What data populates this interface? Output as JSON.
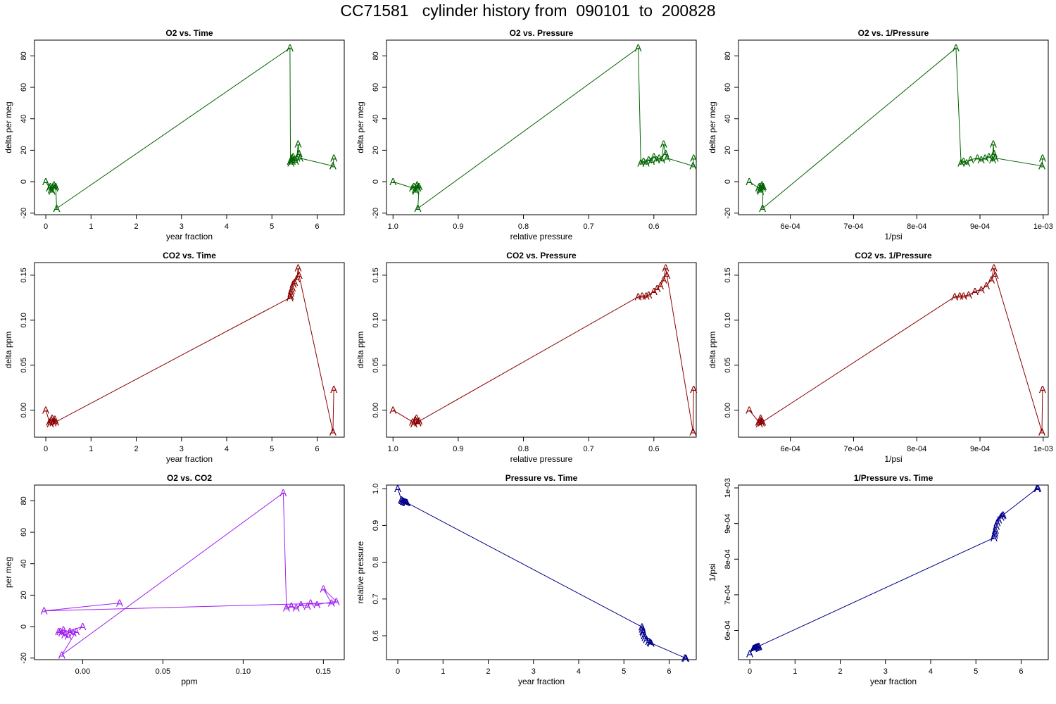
{
  "page": {
    "title": "CC71581   cylinder history from  090101  to  200828"
  },
  "chart_data": [
    {
      "type": "line",
      "title": "O2 vs. Time",
      "xlabel": "year fraction",
      "ylabel": "delta per meg",
      "color": "#006400",
      "xlim": [
        -0.25,
        6.6
      ],
      "ylim": [
        -21,
        90
      ],
      "xticks": [
        0,
        1,
        2,
        3,
        4,
        5,
        6
      ],
      "xticklabels": [
        "0",
        "1",
        "2",
        "3",
        "4",
        "5",
        "6"
      ],
      "yticks": [
        -20,
        0,
        20,
        40,
        60,
        80
      ],
      "yticklabels": [
        "-20",
        "0",
        "20",
        "40",
        "60",
        "80"
      ],
      "marker": "A",
      "x": [
        0.0,
        0.08,
        0.1,
        0.12,
        0.14,
        0.16,
        0.18,
        0.2,
        0.22,
        0.24,
        5.4,
        5.41,
        5.42,
        5.43,
        5.44,
        5.45,
        5.47,
        5.5,
        5.52,
        5.55,
        5.58,
        5.6,
        5.62,
        6.35,
        6.37
      ],
      "y": [
        0.0,
        -4,
        -3,
        -5,
        -6,
        -3,
        -2,
        -4,
        -3,
        -17,
        85,
        13,
        12,
        14,
        15,
        13,
        16,
        14,
        13,
        15,
        24,
        18,
        15,
        10,
        15
      ]
    },
    {
      "type": "line",
      "title": "O2 vs. Pressure",
      "xlabel": "relative pressure",
      "ylabel": "delta per meg",
      "color": "#006400",
      "xlim": [
        1.01,
        0.535
      ],
      "ylim": [
        -21,
        90
      ],
      "xticks": [
        1.0,
        0.9,
        0.8,
        0.7,
        0.6
      ],
      "xticklabels": [
        "1.0",
        "0.9",
        "0.8",
        "0.7",
        "0.6"
      ],
      "yticks": [
        -20,
        0,
        20,
        40,
        60,
        80
      ],
      "yticklabels": [
        "-20",
        "0",
        "20",
        "40",
        "60",
        "80"
      ],
      "marker": "A",
      "x": [
        1.0,
        0.97,
        0.968,
        0.966,
        0.965,
        0.964,
        0.963,
        0.962,
        0.96,
        0.962,
        0.624,
        0.62,
        0.616,
        0.612,
        0.608,
        0.604,
        0.6,
        0.596,
        0.592,
        0.588,
        0.585,
        0.582,
        0.58,
        0.54,
        0.539
      ],
      "y": [
        0.0,
        -4,
        -3,
        -5,
        -6,
        -3,
        -2,
        -4,
        -3,
        -17,
        85,
        12,
        13,
        12,
        14,
        13,
        16,
        14,
        15,
        14,
        24,
        18,
        15,
        10,
        15
      ]
    },
    {
      "type": "line",
      "title": "O2 vs. 1/Pressure",
      "xlabel": "1/psi",
      "ylabel": "delta per meg",
      "color": "#006400",
      "xlim": [
        0.000518,
        0.001008
      ],
      "ylim": [
        -21,
        90
      ],
      "xticks": [
        0.0006,
        0.0007,
        0.0008,
        0.0009,
        0.001
      ],
      "xticklabels": [
        "6e-04",
        "7e-04",
        "8e-04",
        "9e-04",
        "1e-03"
      ],
      "yticks": [
        -20,
        0,
        20,
        40,
        60,
        80
      ],
      "yticklabels": [
        "-20",
        "0",
        "20",
        "40",
        "60",
        "80"
      ],
      "marker": "A",
      "x": [
        0.000535,
        0.00055,
        0.000551,
        0.000552,
        0.000553,
        0.000554,
        0.000555,
        0.000556,
        0.000557,
        0.000556,
        0.000862,
        0.00087,
        0.000874,
        0.000879,
        0.000885,
        0.000896,
        0.000902,
        0.000908,
        0.000914,
        0.00092,
        0.000921,
        0.000922,
        0.000924,
        0.000998,
        0.000999
      ],
      "y": [
        0.0,
        -4,
        -3,
        -5,
        -6,
        -3,
        -2,
        -4,
        -3,
        -17,
        85,
        12,
        13,
        12,
        14,
        15,
        14,
        15,
        16,
        14,
        24,
        18,
        15,
        10,
        15
      ]
    },
    {
      "type": "line",
      "title": "CO2 vs. Time",
      "xlabel": "year fraction",
      "ylabel": "delta ppm",
      "color": "#8b0000",
      "xlim": [
        -0.25,
        6.6
      ],
      "ylim": [
        -0.03,
        0.164
      ],
      "xticks": [
        0,
        1,
        2,
        3,
        4,
        5,
        6
      ],
      "xticklabels": [
        "0",
        "1",
        "2",
        "3",
        "4",
        "5",
        "6"
      ],
      "yticks": [
        0.0,
        0.05,
        0.1,
        0.15
      ],
      "yticklabels": [
        "0.00",
        "0.05",
        "0.10",
        "0.15"
      ],
      "marker": "A",
      "x": [
        0.0,
        0.08,
        0.1,
        0.12,
        0.14,
        0.16,
        0.18,
        0.2,
        0.22,
        5.4,
        5.41,
        5.42,
        5.43,
        5.45,
        5.47,
        5.5,
        5.55,
        5.58,
        5.6,
        6.35,
        6.37
      ],
      "y": [
        0.0,
        -0.013,
        -0.015,
        -0.011,
        -0.009,
        -0.014,
        -0.012,
        -0.01,
        -0.013,
        0.125,
        0.127,
        0.13,
        0.133,
        0.136,
        0.14,
        0.142,
        0.146,
        0.158,
        0.15,
        -0.024,
        0.023
      ]
    },
    {
      "type": "line",
      "title": "CO2 vs. Pressure",
      "xlabel": "relative pressure",
      "ylabel": "delta ppm",
      "color": "#8b0000",
      "xlim": [
        1.01,
        0.535
      ],
      "ylim": [
        -0.03,
        0.164
      ],
      "xticks": [
        1.0,
        0.9,
        0.8,
        0.7,
        0.6
      ],
      "xticklabels": [
        "1.0",
        "0.9",
        "0.8",
        "0.7",
        "0.6"
      ],
      "yticks": [
        0.0,
        0.05,
        0.1,
        0.15
      ],
      "yticklabels": [
        "0.00",
        "0.05",
        "0.10",
        "0.15"
      ],
      "marker": "A",
      "x": [
        1.0,
        0.97,
        0.968,
        0.966,
        0.964,
        0.962,
        0.96,
        0.962,
        0.624,
        0.618,
        0.612,
        0.608,
        0.6,
        0.595,
        0.59,
        0.585,
        0.582,
        0.58,
        0.54,
        0.539
      ],
      "y": [
        0.0,
        -0.013,
        -0.015,
        -0.011,
        -0.009,
        -0.014,
        -0.012,
        -0.013,
        0.126,
        0.127,
        0.127,
        0.128,
        0.132,
        0.135,
        0.138,
        0.145,
        0.158,
        0.15,
        -0.024,
        0.023
      ]
    },
    {
      "type": "line",
      "title": "CO2 vs. 1/Pressure",
      "xlabel": "1/psi",
      "ylabel": "delta ppm",
      "color": "#8b0000",
      "xlim": [
        0.000518,
        0.001008
      ],
      "ylim": [
        -0.03,
        0.164
      ],
      "xticks": [
        0.0006,
        0.0007,
        0.0008,
        0.0009,
        0.001
      ],
      "xticklabels": [
        "6e-04",
        "7e-04",
        "8e-04",
        "9e-04",
        "1e-03"
      ],
      "yticks": [
        0.0,
        0.05,
        0.1,
        0.15
      ],
      "yticklabels": [
        "0.00",
        "0.05",
        "0.10",
        "0.15"
      ],
      "marker": "A",
      "x": [
        0.000535,
        0.00055,
        0.000551,
        0.000552,
        0.000553,
        0.000554,
        0.000555,
        0.000556,
        0.00086,
        0.000868,
        0.000874,
        0.000882,
        0.000892,
        0.000902,
        0.00091,
        0.000918,
        0.000922,
        0.000924,
        0.000998,
        0.000999
      ],
      "y": [
        0.0,
        -0.013,
        -0.015,
        -0.011,
        -0.009,
        -0.014,
        -0.012,
        -0.013,
        0.126,
        0.127,
        0.127,
        0.128,
        0.132,
        0.134,
        0.138,
        0.145,
        0.158,
        0.15,
        -0.024,
        0.023
      ]
    },
    {
      "type": "line",
      "title": "O2 vs. CO2",
      "xlabel": "ppm",
      "ylabel": "per meg",
      "color": "#a020f0",
      "xlim": [
        -0.03,
        0.163
      ],
      "ylim": [
        -21,
        90
      ],
      "xticks": [
        0.0,
        0.05,
        0.1,
        0.15
      ],
      "xticklabels": [
        "0.00",
        "0.05",
        "0.10",
        "0.15"
      ],
      "yticks": [
        -20,
        0,
        20,
        40,
        60,
        80
      ],
      "yticklabels": [
        "-20",
        "0",
        "20",
        "40",
        "60",
        "80"
      ],
      "marker": "A",
      "x": [
        0.0,
        -0.013,
        -0.015,
        -0.011,
        -0.009,
        -0.014,
        -0.012,
        -0.006,
        -0.008,
        -0.004,
        -0.013,
        0.125,
        0.127,
        0.13,
        0.133,
        0.136,
        0.14,
        0.142,
        0.146,
        0.158,
        0.15,
        0.155,
        -0.024,
        0.023
      ],
      "y": [
        0.0,
        -4,
        -3,
        -5,
        -6,
        -3,
        -2,
        -4,
        -3,
        -3,
        -18,
        85,
        12,
        13,
        12,
        14,
        13,
        15,
        14,
        16,
        24,
        15,
        10,
        15
      ]
    },
    {
      "type": "line",
      "title": "Pressure vs. Time",
      "xlabel": "year fraction",
      "ylabel": "relative pressure",
      "color": "#00008b",
      "xlim": [
        -0.25,
        6.6
      ],
      "ylim": [
        0.535,
        1.01
      ],
      "xticks": [
        0,
        1,
        2,
        3,
        4,
        5,
        6
      ],
      "xticklabels": [
        "0",
        "1",
        "2",
        "3",
        "4",
        "5",
        "6"
      ],
      "yticks": [
        0.6,
        0.7,
        0.8,
        0.9,
        1.0
      ],
      "yticklabels": [
        "0.6",
        "0.7",
        "0.8",
        "0.9",
        "1.0"
      ],
      "marker": "A",
      "x": [
        0.0,
        0.08,
        0.1,
        0.12,
        0.14,
        0.16,
        0.18,
        0.2,
        5.4,
        5.41,
        5.42,
        5.43,
        5.45,
        5.47,
        5.5,
        5.55,
        5.58,
        5.6,
        6.35,
        6.37
      ],
      "y": [
        1.0,
        0.97,
        0.968,
        0.966,
        0.965,
        0.964,
        0.963,
        0.962,
        0.624,
        0.618,
        0.612,
        0.608,
        0.6,
        0.595,
        0.59,
        0.585,
        0.582,
        0.58,
        0.54,
        0.539
      ]
    },
    {
      "type": "line",
      "title": "1/Pressure vs. Time",
      "xlabel": "year fraction",
      "ylabel": "1/psi",
      "color": "#00008b",
      "xlim": [
        -0.25,
        6.6
      ],
      "ylim": [
        0.000518,
        0.001008
      ],
      "xticks": [
        0,
        1,
        2,
        3,
        4,
        5,
        6
      ],
      "xticklabels": [
        "0",
        "1",
        "2",
        "3",
        "4",
        "5",
        "6"
      ],
      "yticks": [
        0.0006,
        0.0007,
        0.0008,
        0.0009,
        0.001
      ],
      "yticklabels": [
        "6e-04",
        "7e-04",
        "8e-04",
        "9e-04",
        "1e-03"
      ],
      "marker": "A",
      "x": [
        0.0,
        0.08,
        0.1,
        0.12,
        0.14,
        0.16,
        0.18,
        0.2,
        5.4,
        5.41,
        5.42,
        5.43,
        5.45,
        5.47,
        5.5,
        5.55,
        5.58,
        5.6,
        6.35,
        6.37
      ],
      "y": [
        0.000535,
        0.00055,
        0.000551,
        0.000552,
        0.000553,
        0.000554,
        0.000555,
        0.000556,
        0.00086,
        0.000868,
        0.000874,
        0.000882,
        0.000892,
        0.000902,
        0.00091,
        0.000918,
        0.000922,
        0.000924,
        0.000998,
        0.000999
      ]
    }
  ]
}
